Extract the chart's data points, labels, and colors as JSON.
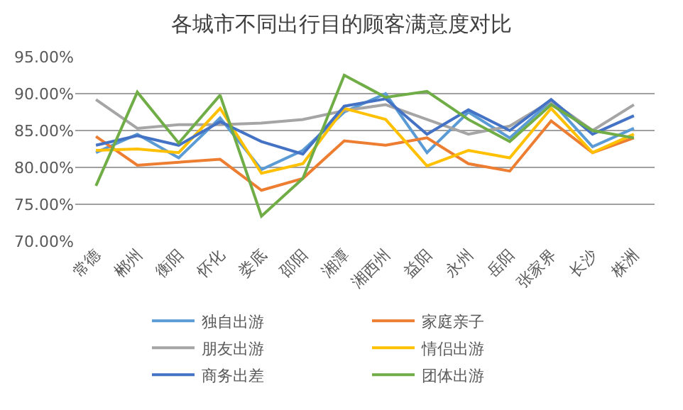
{
  "chart_data": {
    "type": "line",
    "title": "各城市不同出行目的顾客满意度对比",
    "categories": [
      "常德",
      "郴州",
      "衡阳",
      "怀化",
      "娄底",
      "邵阳",
      "湘潭",
      "湘西州",
      "益阳",
      "永州",
      "岳阳",
      "张家界",
      "长沙",
      "株洲"
    ],
    "series": [
      {
        "name": "独自出游",
        "color": "#5b9bd5",
        "values": [
          82,
          84.5,
          81.3,
          86.7,
          79.7,
          82.3,
          87.5,
          90,
          82,
          87.5,
          84,
          89,
          82.8,
          85.3
        ]
      },
      {
        "name": "家庭亲子",
        "color": "#ed7d31",
        "values": [
          84.2,
          80.3,
          80.7,
          81.1,
          76.9,
          78.5,
          83.6,
          83,
          84,
          80.5,
          79.5,
          86.3,
          82,
          84
        ]
      },
      {
        "name": "朋友出游",
        "color": "#a5a5a5",
        "values": [
          89.2,
          85.3,
          85.8,
          85.8,
          86,
          86.5,
          87.7,
          88.5,
          86.5,
          84.5,
          85.6,
          89,
          85,
          88.5
        ]
      },
      {
        "name": "情侣出游",
        "color": "#ffc000",
        "values": [
          82.3,
          82.5,
          82,
          88,
          79.2,
          80.5,
          88,
          86.5,
          80.2,
          82.3,
          81.3,
          88,
          82,
          84.5
        ]
      },
      {
        "name": "商务出差",
        "color": "#4472c4",
        "values": [
          83,
          84.3,
          83,
          86.2,
          83.5,
          81.8,
          88.3,
          89.3,
          84.5,
          87.8,
          85,
          89.2,
          84.5,
          87
        ]
      },
      {
        "name": "团体出游",
        "color": "#70ad47",
        "values": [
          77.5,
          90.2,
          83.3,
          89.8,
          73.4,
          78.5,
          92.5,
          89.5,
          90.3,
          86.5,
          83.5,
          88.5,
          85,
          84
        ]
      }
    ],
    "ylim": [
      70,
      95
    ],
    "yticks": [
      {
        "value": 70,
        "label": "70.00%"
      },
      {
        "value": 75,
        "label": "75.00%"
      },
      {
        "value": 80,
        "label": "80.00%"
      },
      {
        "value": 85,
        "label": "85.00%"
      },
      {
        "value": 90,
        "label": "90.00%"
      },
      {
        "value": 95,
        "label": "95.00%"
      }
    ],
    "grid": "y",
    "legend": "bottom",
    "marker": "none",
    "line_style": "solid"
  }
}
